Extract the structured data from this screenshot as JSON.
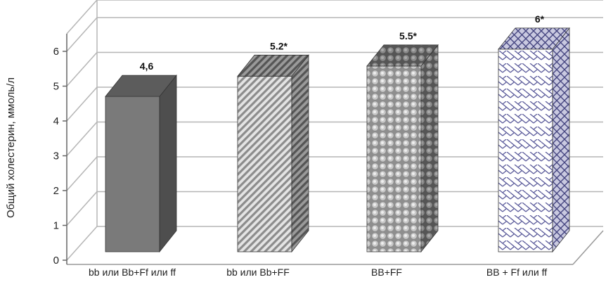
{
  "chart_data": {
    "type": "bar",
    "categories": [
      "bb или Bb+Ff или ff",
      "bb или Bb+FF",
      "BB+FF",
      "BB + Ff или ff"
    ],
    "values": [
      4.6,
      5.2,
      5.5,
      6
    ],
    "data_labels": [
      "4,6",
      "5.2*",
      "5.5*",
      "6*"
    ],
    "title": "",
    "xlabel": "",
    "ylabel": "Общий  холестерин, ммоль/л",
    "ylim": [
      0,
      6
    ],
    "yticks": [
      "0",
      "1",
      "2",
      "3",
      "4",
      "5",
      "6"
    ],
    "grid": true,
    "legend": "none",
    "style": "3d",
    "colors": {
      "bar1": "#7a7a7a",
      "bar2": "#b8b8b8",
      "bar3": "#a8a8a8",
      "bar4": "#8e8ebc",
      "grid": "#b5b5b5"
    }
  }
}
